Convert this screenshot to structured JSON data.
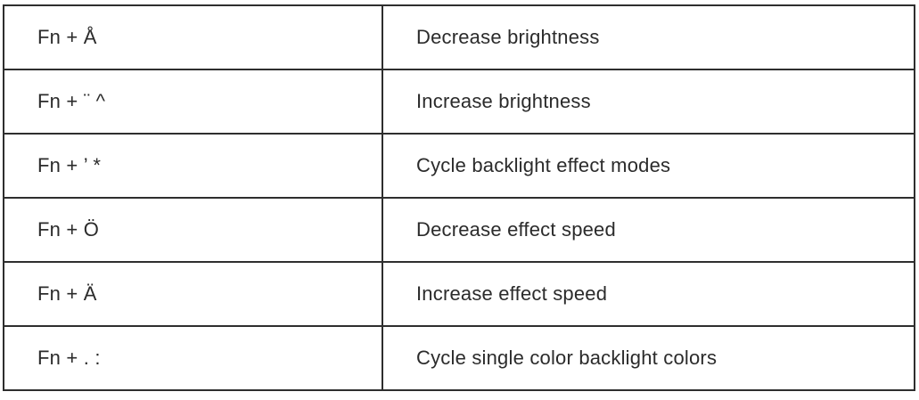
{
  "table": {
    "description": "Keyboard Fn shortcut reference table",
    "rows": [
      {
        "key": "Fn + Å",
        "action": "Decrease brightness"
      },
      {
        "key": "Fn + ¨ ^",
        "action": "Increase brightness"
      },
      {
        "key": "Fn + ’ *",
        "action": "Cycle backlight effect modes"
      },
      {
        "key": "Fn + Ö",
        "action": "Decrease effect speed"
      },
      {
        "key": "Fn + Ä",
        "action": "Increase effect speed"
      },
      {
        "key": "Fn + . :",
        "action": "Cycle single color backlight colors"
      }
    ]
  },
  "colors": {
    "border": "#2e2e2e",
    "text": "#2b2b2b",
    "background": "#ffffff"
  }
}
